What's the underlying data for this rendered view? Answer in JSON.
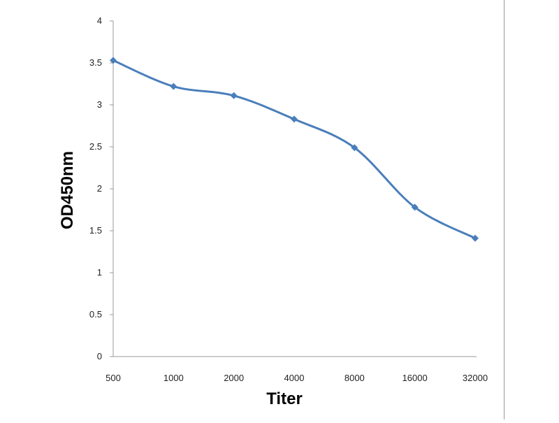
{
  "chart_data": {
    "type": "line",
    "title": "",
    "xlabel": "Titer",
    "ylabel": "OD450nm",
    "categories": [
      "500",
      "1000",
      "2000",
      "4000",
      "8000",
      "16000",
      "32000"
    ],
    "series": [
      {
        "values": [
          3.53,
          3.22,
          3.11,
          2.83,
          2.49,
          1.78,
          1.41
        ]
      }
    ],
    "ylim": [
      0,
      4
    ],
    "yticks": [
      "0",
      "0.5",
      "1",
      "1.5",
      "2",
      "2.5",
      "3",
      "3.5",
      "4"
    ],
    "grid": false,
    "legend": "none",
    "marker": "diamond",
    "smooth": true,
    "colors": {
      "series": "#4a7ebb",
      "axis": "#9a9a9a"
    }
  }
}
